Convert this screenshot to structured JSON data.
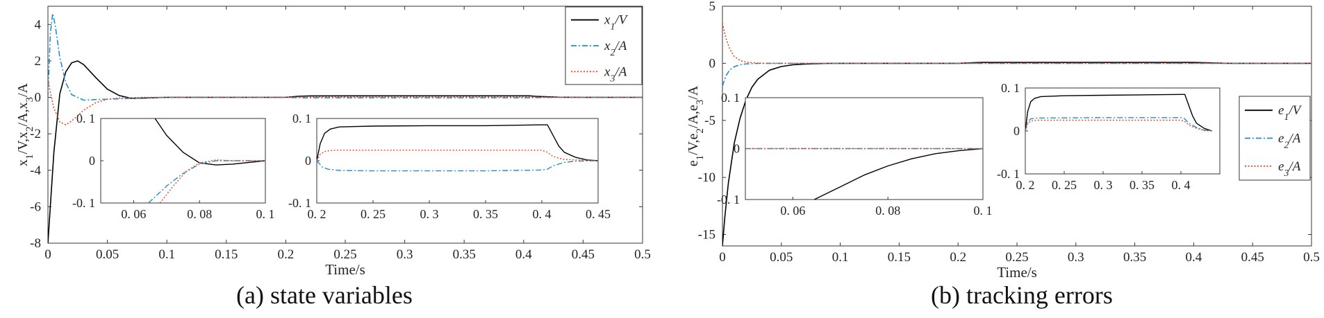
{
  "captions": {
    "a": "(a) state variables",
    "b": "(b) tracking errors"
  },
  "colors": {
    "s1": "#000000",
    "s2": "#1f8fd0",
    "s3": "#e8481c",
    "frame": "#333333"
  },
  "chart_data": [
    {
      "id": "a",
      "type": "line",
      "title": "",
      "xlabel": "Time/s",
      "ylabel": "x1/V,x2/A,x3/A",
      "ylabel_parts": [
        "x",
        "1",
        "/V,x",
        "2",
        "/A,x",
        "3",
        "/A"
      ],
      "xlim": [
        0,
        0.5
      ],
      "ylim": [
        -8,
        5
      ],
      "xticks": [
        0,
        0.05,
        0.1,
        0.15,
        0.2,
        0.25,
        0.3,
        0.35,
        0.4,
        0.45,
        0.5
      ],
      "yticks": [
        -8,
        -6,
        -4,
        -2,
        0,
        2,
        4
      ],
      "legend": {
        "position": "top-right",
        "entries": [
          {
            "base": "x",
            "sub": "1",
            "unit": "/V"
          },
          {
            "base": "x",
            "sub": "2",
            "unit": "/A"
          },
          {
            "base": "x",
            "sub": "3",
            "unit": "/A"
          }
        ]
      },
      "series": [
        {
          "name": "x1/V",
          "style": "solid",
          "x": [
            0,
            0.002,
            0.005,
            0.01,
            0.015,
            0.02,
            0.025,
            0.03,
            0.04,
            0.05,
            0.06,
            0.07,
            0.08,
            0.1,
            0.2,
            0.21,
            0.22,
            0.3,
            0.4,
            0.405,
            0.41,
            0.42,
            0.43,
            0.45,
            0.5
          ],
          "y": [
            -8,
            -6,
            -3,
            0.2,
            1.4,
            1.9,
            2.0,
            1.8,
            1.1,
            0.45,
            0.1,
            -0.05,
            -0.04,
            0,
            0,
            0.06,
            0.08,
            0.085,
            0.085,
            0.085,
            0.06,
            0.03,
            0.01,
            0,
            0
          ]
        },
        {
          "name": "x2/A",
          "style": "dashdot",
          "x": [
            0,
            0.002,
            0.004,
            0.006,
            0.01,
            0.015,
            0.02,
            0.03,
            0.04,
            0.05,
            0.06,
            0.07,
            0.08,
            0.1,
            0.2,
            0.21,
            0.22,
            0.3,
            0.4,
            0.41,
            0.42,
            0.43,
            0.45,
            0.5
          ],
          "y": [
            0,
            3.5,
            4.6,
            4.0,
            2.2,
            0.8,
            0.15,
            -0.15,
            -0.12,
            -0.1,
            -0.08,
            -0.05,
            -0.02,
            0,
            0,
            -0.02,
            -0.025,
            -0.025,
            -0.025,
            -0.015,
            -0.005,
            0,
            0,
            0
          ]
        },
        {
          "name": "x3/A",
          "style": "dotted",
          "x": [
            0,
            0.002,
            0.005,
            0.01,
            0.015,
            0.02,
            0.03,
            0.04,
            0.05,
            0.06,
            0.07,
            0.08,
            0.1,
            0.2,
            0.21,
            0.22,
            0.3,
            0.4,
            0.41,
            0.42,
            0.45,
            0.5
          ],
          "y": [
            1.0,
            0.3,
            -0.6,
            -1.35,
            -1.5,
            -1.3,
            -0.7,
            -0.3,
            -0.1,
            -0.03,
            -0.02,
            0,
            0,
            0,
            0.02,
            0.025,
            0.025,
            0.025,
            0.015,
            0.005,
            0,
            0
          ]
        }
      ],
      "insets": [
        {
          "xlim": [
            0.05,
            0.1
          ],
          "ylim": [
            -0.1,
            0.1
          ],
          "xticks": [
            0.06,
            0.08,
            0.1
          ],
          "xticklabels": [
            "0. 06",
            "0. 08",
            "0. 1"
          ],
          "yticks": [
            -0.1,
            0,
            0.1
          ],
          "yticklabels": [
            "-0. 1",
            "0",
            "0. 1"
          ],
          "series": [
            {
              "style": "solid",
              "x": [
                0.0665,
                0.07,
                0.075,
                0.08,
                0.085,
                0.09,
                0.1
              ],
              "y": [
                0.1,
                0.06,
                0.02,
                -0.005,
                -0.01,
                -0.008,
                0
              ]
            },
            {
              "style": "dashdot",
              "x": [
                0.0645,
                0.07,
                0.075,
                0.08,
                0.085,
                0.09,
                0.1
              ],
              "y": [
                -0.1,
                -0.06,
                -0.03,
                -0.008,
                0,
                0,
                0
              ]
            },
            {
              "style": "dotted",
              "x": [
                0.068,
                0.072,
                0.076,
                0.08,
                0.085,
                0.09,
                0.1
              ],
              "y": [
                -0.1,
                -0.06,
                -0.025,
                -0.005,
                0.002,
                0,
                0
              ]
            }
          ]
        },
        {
          "xlim": [
            0.2,
            0.45
          ],
          "ylim": [
            -0.1,
            0.1
          ],
          "xticks": [
            0.2,
            0.25,
            0.3,
            0.35,
            0.4,
            0.45
          ],
          "xticklabels": [
            "0. 2",
            "0. 25",
            "0. 3",
            "0. 35",
            "0. 4",
            "0. 45"
          ],
          "yticks": [
            -0.1,
            0,
            0.1
          ],
          "yticklabels": [
            "-0. 1",
            "0",
            "0. 1"
          ],
          "series": [
            {
              "style": "solid",
              "x": [
                0.2,
                0.203,
                0.207,
                0.212,
                0.22,
                0.25,
                0.3,
                0.35,
                0.4,
                0.405,
                0.41,
                0.415,
                0.42,
                0.43,
                0.44,
                0.45
              ],
              "y": [
                0,
                0.04,
                0.065,
                0.075,
                0.08,
                0.082,
                0.083,
                0.083,
                0.085,
                0.085,
                0.06,
                0.035,
                0.02,
                0.008,
                0.002,
                0
              ]
            },
            {
              "style": "dashdot",
              "x": [
                0.2,
                0.205,
                0.21,
                0.22,
                0.25,
                0.3,
                0.35,
                0.4,
                0.405,
                0.41,
                0.42,
                0.43,
                0.45
              ],
              "y": [
                0,
                -0.015,
                -0.02,
                -0.023,
                -0.024,
                -0.024,
                -0.024,
                -0.022,
                -0.02,
                -0.012,
                -0.004,
                -0.001,
                0
              ]
            },
            {
              "style": "dotted",
              "x": [
                0.2,
                0.203,
                0.207,
                0.215,
                0.3,
                0.4,
                0.405,
                0.41,
                0.42,
                0.45
              ],
              "y": [
                0,
                0.015,
                0.022,
                0.025,
                0.025,
                0.025,
                0.02,
                0.01,
                0.003,
                0
              ]
            }
          ]
        }
      ]
    },
    {
      "id": "b",
      "type": "line",
      "title": "",
      "xlabel": "Time/s",
      "ylabel": "e1/V,e2/A,e3/A",
      "ylabel_parts": [
        "e",
        "1",
        "/V,e",
        "2",
        "/A,e",
        "3",
        "/A"
      ],
      "xlim": [
        0,
        0.5
      ],
      "ylim": [
        -16,
        5
      ],
      "xticks": [
        0,
        0.05,
        0.1,
        0.15,
        0.2,
        0.25,
        0.3,
        0.35,
        0.4,
        0.45,
        0.5
      ],
      "yticks": [
        -15,
        -10,
        -5,
        0,
        5
      ],
      "legend": {
        "position": "middle-right",
        "entries": [
          {
            "base": "e",
            "sub": "1",
            "unit": "/V"
          },
          {
            "base": "e",
            "sub": "2",
            "unit": "/A"
          },
          {
            "base": "e",
            "sub": "3",
            "unit": "/A"
          }
        ]
      },
      "series": [
        {
          "name": "e1/V",
          "style": "solid",
          "x": [
            0,
            0.002,
            0.005,
            0.01,
            0.015,
            0.02,
            0.025,
            0.03,
            0.04,
            0.05,
            0.06,
            0.07,
            0.08,
            0.09,
            0.1,
            0.2,
            0.22,
            0.4,
            0.41,
            0.43,
            0.5
          ],
          "y": [
            -16,
            -13.5,
            -10.5,
            -7,
            -4.8,
            -3.2,
            -2.1,
            -1.4,
            -0.6,
            -0.28,
            -0.13,
            -0.07,
            -0.03,
            -0.01,
            0,
            0,
            0.08,
            0.085,
            0.05,
            0,
            0
          ]
        },
        {
          "name": "e2/A",
          "style": "dashdot",
          "x": [
            0,
            0.003,
            0.006,
            0.01,
            0.015,
            0.02,
            0.03,
            0.04,
            0.05,
            0.5
          ],
          "y": [
            -2,
            -1.1,
            -0.6,
            -0.3,
            -0.12,
            -0.05,
            -0.01,
            0,
            0,
            0
          ]
        },
        {
          "name": "e3/A",
          "style": "dotted",
          "x": [
            0,
            0.003,
            0.006,
            0.01,
            0.015,
            0.02,
            0.03,
            0.04,
            0.5
          ],
          "y": [
            3.5,
            2.2,
            1.3,
            0.6,
            0.25,
            0.1,
            0.02,
            0,
            0
          ]
        }
      ],
      "insets": [
        {
          "xlim": [
            0.05,
            0.1
          ],
          "ylim": [
            -0.1,
            0.1
          ],
          "xticks": [
            0.06,
            0.08,
            0.1
          ],
          "xticklabels": [
            "0. 06",
            "0. 08",
            "0. 1"
          ],
          "yticks": [
            -0.1,
            0,
            0.1
          ],
          "yticklabels": [
            "-0. 1",
            "0",
            "0. 1"
          ],
          "series": [
            {
              "style": "solid",
              "x": [
                0.0645,
                0.07,
                0.075,
                0.08,
                0.085,
                0.09,
                0.095,
                0.1
              ],
              "y": [
                -0.1,
                -0.075,
                -0.052,
                -0.034,
                -0.02,
                -0.01,
                -0.004,
                0
              ]
            },
            {
              "style": "dashdot",
              "x": [
                0.05,
                0.1
              ],
              "y": [
                0,
                0
              ]
            },
            {
              "style": "dotted",
              "x": [
                0.05,
                0.1
              ],
              "y": [
                0,
                0
              ]
            }
          ]
        },
        {
          "xlim": [
            0.2,
            0.45
          ],
          "ylim": [
            -0.1,
            0.1
          ],
          "xticks": [
            0.2,
            0.25,
            0.3,
            0.35,
            0.4
          ],
          "xticklabels": [
            "0. 2",
            "0. 25",
            "0. 3",
            "0. 35",
            "0. 4"
          ],
          "yticks": [
            -0.1,
            0,
            0.1
          ],
          "yticklabels": [
            "-0. 1",
            "0",
            "0. 1"
          ],
          "series": [
            {
              "style": "solid",
              "x": [
                0.2,
                0.203,
                0.207,
                0.212,
                0.22,
                0.25,
                0.3,
                0.35,
                0.4,
                0.405,
                0.41,
                0.415,
                0.42,
                0.43,
                0.44
              ],
              "y": [
                0,
                0.045,
                0.068,
                0.076,
                0.08,
                0.082,
                0.083,
                0.084,
                0.085,
                0.085,
                0.06,
                0.035,
                0.018,
                0.006,
                0
              ]
            },
            {
              "style": "dashdot",
              "x": [
                0.2,
                0.203,
                0.207,
                0.215,
                0.3,
                0.4,
                0.405,
                0.41,
                0.42,
                0.43,
                0.44
              ],
              "y": [
                0,
                0.02,
                0.028,
                0.03,
                0.031,
                0.031,
                0.028,
                0.018,
                0.008,
                0.002,
                0
              ]
            },
            {
              "style": "dotted",
              "x": [
                0.2,
                0.203,
                0.207,
                0.215,
                0.3,
                0.4,
                0.405,
                0.41,
                0.42,
                0.43,
                0.44
              ],
              "y": [
                0,
                0.016,
                0.023,
                0.025,
                0.025,
                0.025,
                0.022,
                0.014,
                0.006,
                0.001,
                0
              ]
            }
          ]
        }
      ]
    }
  ]
}
